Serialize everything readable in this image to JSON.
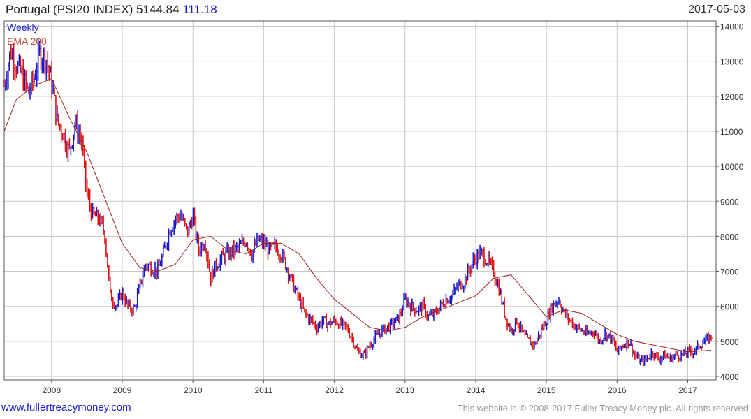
{
  "header": {
    "title": "Portugal (PSI20 INDEX)",
    "price": "5144.84",
    "change": "111.18",
    "date": "2017-05-03"
  },
  "legend": {
    "weekly": "Weekly",
    "ema": "EMA 200"
  },
  "footer": {
    "site": "www.fullertreacymoney.com",
    "copyright": "This website is © 2008-2017 Fuller Treacy Money plc. All rights reserved"
  },
  "colors": {
    "up": "#1a1acc",
    "down": "#e01010",
    "ema": "#a02020",
    "grid": "#c8c8c8"
  },
  "chart_data": {
    "type": "line",
    "frequency": "weekly",
    "ylim": [
      3900,
      14150
    ],
    "xlim": [
      2007.33,
      2017.4
    ],
    "y_ticks": [
      4000,
      5000,
      6000,
      7000,
      8000,
      9000,
      10000,
      11000,
      12000,
      13000,
      14000
    ],
    "y_tick_labels": [
      "4000",
      "5000",
      "6000",
      "7000",
      "8000",
      "9000",
      "10000",
      "11000",
      "12000",
      "13000",
      "14000"
    ],
    "x_ticks": [
      2008,
      2009,
      2010,
      2011,
      2012,
      2013,
      2014,
      2015,
      2016,
      2017
    ],
    "x_tick_labels": [
      "2008",
      "2009",
      "2010",
      "2011",
      "2012",
      "2013",
      "2014",
      "2015",
      "2016",
      "2017"
    ],
    "grid": true,
    "series": [
      {
        "name": "Weekly",
        "x": [
          2007.33,
          2007.42,
          2007.5,
          2007.58,
          2007.67,
          2007.75,
          2007.83,
          2007.92,
          2008.0,
          2008.08,
          2008.17,
          2008.25,
          2008.33,
          2008.42,
          2008.5,
          2008.58,
          2008.67,
          2008.75,
          2008.83,
          2008.92,
          2009.0,
          2009.08,
          2009.17,
          2009.25,
          2009.33,
          2009.42,
          2009.5,
          2009.58,
          2009.67,
          2009.75,
          2009.83,
          2009.92,
          2010.0,
          2010.08,
          2010.17,
          2010.25,
          2010.33,
          2010.42,
          2010.5,
          2010.58,
          2010.67,
          2010.75,
          2010.83,
          2010.92,
          2011.0,
          2011.08,
          2011.17,
          2011.25,
          2011.33,
          2011.42,
          2011.5,
          2011.58,
          2011.67,
          2011.75,
          2011.83,
          2011.92,
          2012.0,
          2012.08,
          2012.17,
          2012.25,
          2012.33,
          2012.42,
          2012.5,
          2012.58,
          2012.67,
          2012.75,
          2012.83,
          2012.92,
          2013.0,
          2013.08,
          2013.17,
          2013.25,
          2013.33,
          2013.42,
          2013.5,
          2013.58,
          2013.67,
          2013.75,
          2013.83,
          2013.92,
          2014.0,
          2014.08,
          2014.17,
          2014.25,
          2014.33,
          2014.42,
          2014.5,
          2014.58,
          2014.67,
          2014.75,
          2014.83,
          2014.92,
          2015.0,
          2015.08,
          2015.17,
          2015.25,
          2015.33,
          2015.42,
          2015.5,
          2015.58,
          2015.67,
          2015.75,
          2015.83,
          2015.92,
          2016.0,
          2016.08,
          2016.17,
          2016.25,
          2016.33,
          2016.42,
          2016.5,
          2016.58,
          2016.67,
          2016.75,
          2016.83,
          2016.92,
          2017.0,
          2017.08,
          2017.17,
          2017.25,
          2017.33
        ],
        "values": [
          12300,
          13300,
          12900,
          12600,
          12100,
          12500,
          13200,
          13100,
          12400,
          11300,
          10900,
          10400,
          11200,
          10800,
          9200,
          8600,
          8500,
          8100,
          6300,
          6000,
          6400,
          6000,
          5900,
          6600,
          7200,
          7100,
          7000,
          7500,
          8200,
          8500,
          8600,
          8100,
          8600,
          7600,
          7900,
          6800,
          7200,
          7400,
          7500,
          7600,
          7700,
          7900,
          7500,
          7900,
          7800,
          7600,
          7700,
          7500,
          7100,
          6600,
          6200,
          5800,
          5600,
          5400,
          5600,
          5500,
          5600,
          5500,
          5400,
          5100,
          4700,
          4600,
          4900,
          5100,
          5300,
          5400,
          5500,
          5700,
          6200,
          6000,
          5900,
          6000,
          5700,
          5800,
          6000,
          6200,
          6300,
          6600,
          6700,
          7100,
          7400,
          7500,
          7300,
          7000,
          6500,
          5700,
          5300,
          5600,
          5200,
          5000,
          4900,
          5300,
          5600,
          6000,
          6200,
          5800,
          5600,
          5400,
          5300,
          5200,
          5300,
          5000,
          5200,
          5100,
          4700,
          4900,
          5000,
          4600,
          4400,
          4500,
          4700,
          4500,
          4600,
          4500,
          4600,
          4600,
          4700,
          4700,
          4900,
          5000,
          5145
        ]
      },
      {
        "name": "EMA 200",
        "x": [
          2007.33,
          2007.5,
          2007.75,
          2008.0,
          2008.25,
          2008.5,
          2008.75,
          2009.0,
          2009.25,
          2009.5,
          2009.75,
          2010.0,
          2010.25,
          2010.5,
          2010.75,
          2011.0,
          2011.25,
          2011.5,
          2011.75,
          2012.0,
          2012.25,
          2012.5,
          2012.75,
          2013.0,
          2013.25,
          2013.5,
          2013.75,
          2014.0,
          2014.25,
          2014.5,
          2014.75,
          2015.0,
          2015.25,
          2015.5,
          2015.75,
          2016.0,
          2016.25,
          2016.5,
          2016.75,
          2017.0,
          2017.33
        ],
        "values": [
          11000,
          11900,
          12300,
          12500,
          11400,
          10400,
          9100,
          7800,
          7100,
          7000,
          7200,
          7900,
          8000,
          7600,
          7500,
          7800,
          7800,
          7500,
          6800,
          6200,
          5800,
          5400,
          5300,
          5400,
          5700,
          5900,
          6100,
          6300,
          6800,
          6900,
          6300,
          5700,
          5900,
          5800,
          5500,
          5200,
          5000,
          4900,
          4800,
          4700,
          4750
        ]
      }
    ]
  }
}
